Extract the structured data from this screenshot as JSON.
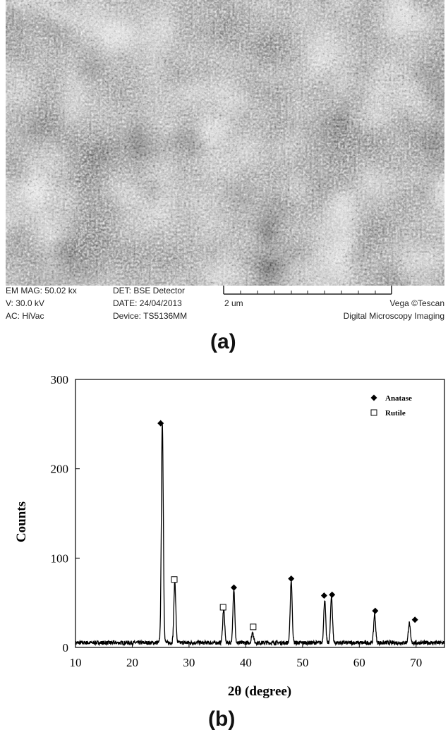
{
  "panel_a": {
    "label": "(a)",
    "info": {
      "mag": "EM MAG: 50.02 kx",
      "voltage": "V:   30.0 kV",
      "vac": "AC: HiVac",
      "detector": "DET: BSE Detector",
      "date": "DATE: 24/04/2013",
      "device": "Device: TS5136MM",
      "scale": "2 um",
      "brand": "Vega ©Tescan",
      "brand_sub": "Digital Microscopy Imaging"
    }
  },
  "panel_b": {
    "label": "(b)"
  },
  "chart_data": {
    "type": "line",
    "xlabel": "2θ (degree)",
    "ylabel": "Counts",
    "xlim": [
      10,
      75
    ],
    "ylim": [
      0,
      300
    ],
    "xticks": [
      10,
      20,
      30,
      40,
      50,
      60,
      70
    ],
    "yticks": [
      0,
      100,
      200,
      300
    ],
    "grid": false,
    "legend_position": "top-right",
    "legend": [
      {
        "marker": "filled-diamond",
        "label": "Anatase"
      },
      {
        "marker": "open-square",
        "label": "Rutile"
      }
    ],
    "peaks": [
      {
        "x": 25.3,
        "y": 245,
        "phase": "Anatase"
      },
      {
        "x": 27.5,
        "y": 68,
        "phase": "Rutile"
      },
      {
        "x": 36.1,
        "y": 38,
        "phase": "Rutile"
      },
      {
        "x": 37.9,
        "y": 58,
        "phase": "Anatase"
      },
      {
        "x": 41.2,
        "y": 12,
        "phase": "Rutile"
      },
      {
        "x": 48.0,
        "y": 70,
        "phase": "Anatase"
      },
      {
        "x": 53.9,
        "y": 48,
        "phase": "Anatase"
      },
      {
        "x": 55.1,
        "y": 52,
        "phase": "Anatase"
      },
      {
        "x": 62.7,
        "y": 32,
        "phase": "Anatase"
      },
      {
        "x": 68.8,
        "y": 22,
        "phase": "Anatase"
      }
    ],
    "markers": [
      {
        "x": 25.0,
        "y": 251,
        "phase": "Anatase"
      },
      {
        "x": 27.4,
        "y": 76,
        "phase": "Rutile"
      },
      {
        "x": 36.0,
        "y": 45,
        "phase": "Rutile"
      },
      {
        "x": 37.9,
        "y": 67,
        "phase": "Anatase"
      },
      {
        "x": 41.3,
        "y": 23,
        "phase": "Rutile"
      },
      {
        "x": 48.0,
        "y": 77,
        "phase": "Anatase"
      },
      {
        "x": 53.8,
        "y": 58,
        "phase": "Anatase"
      },
      {
        "x": 55.2,
        "y": 59,
        "phase": "Anatase"
      },
      {
        "x": 62.8,
        "y": 41,
        "phase": "Anatase"
      },
      {
        "x": 69.8,
        "y": 31,
        "phase": "Anatase"
      }
    ]
  }
}
